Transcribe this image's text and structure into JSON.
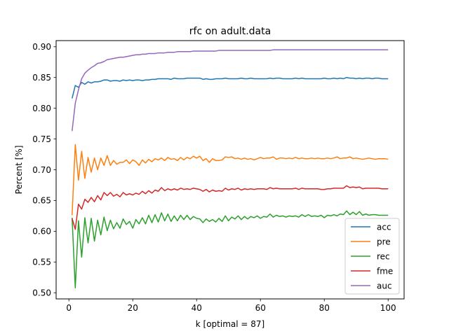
{
  "chart_data": {
    "type": "line",
    "title": "rfc on adult.data",
    "xlabel": "k [optimal = 87]",
    "ylabel": "Percent [%]",
    "xlim": [
      -4,
      105
    ],
    "ylim": [
      0.49,
      0.91
    ],
    "xticks": [
      0,
      20,
      40,
      60,
      80,
      100
    ],
    "xtick_labels": [
      "0",
      "20",
      "40",
      "60",
      "80",
      "100"
    ],
    "yticks": [
      0.5,
      0.55,
      0.6,
      0.65,
      0.7,
      0.75,
      0.8,
      0.85,
      0.9
    ],
    "ytick_labels": [
      "0.50",
      "0.55",
      "0.60",
      "0.65",
      "0.70",
      "0.75",
      "0.80",
      "0.85",
      "0.90"
    ],
    "grid": false,
    "legend_position": "lower-right",
    "x": [
      1,
      2,
      3,
      4,
      5,
      6,
      7,
      8,
      9,
      10,
      11,
      12,
      13,
      14,
      15,
      16,
      17,
      18,
      19,
      20,
      21,
      22,
      23,
      24,
      25,
      26,
      27,
      28,
      29,
      30,
      31,
      32,
      33,
      34,
      35,
      36,
      37,
      38,
      39,
      40,
      41,
      42,
      43,
      44,
      45,
      46,
      47,
      48,
      49,
      50,
      51,
      52,
      53,
      54,
      55,
      56,
      57,
      58,
      59,
      60,
      61,
      62,
      63,
      64,
      65,
      66,
      67,
      68,
      69,
      70,
      71,
      72,
      73,
      74,
      75,
      76,
      77,
      78,
      79,
      80,
      81,
      82,
      83,
      84,
      85,
      86,
      87,
      88,
      89,
      90,
      91,
      92,
      93,
      94,
      95,
      96,
      97,
      98,
      99,
      100
    ],
    "series": [
      {
        "name": "acc",
        "color": "#1f77b4",
        "values": [
          0.816,
          0.837,
          0.834,
          0.842,
          0.839,
          0.843,
          0.841,
          0.843,
          0.843,
          0.844,
          0.846,
          0.846,
          0.844,
          0.845,
          0.845,
          0.844,
          0.846,
          0.845,
          0.846,
          0.845,
          0.846,
          0.846,
          0.845,
          0.846,
          0.846,
          0.847,
          0.847,
          0.848,
          0.848,
          0.848,
          0.848,
          0.847,
          0.849,
          0.848,
          0.848,
          0.848,
          0.849,
          0.849,
          0.849,
          0.849,
          0.849,
          0.847,
          0.848,
          0.847,
          0.847,
          0.848,
          0.848,
          0.848,
          0.849,
          0.848,
          0.848,
          0.848,
          0.848,
          0.849,
          0.848,
          0.848,
          0.849,
          0.848,
          0.848,
          0.848,
          0.848,
          0.848,
          0.849,
          0.848,
          0.849,
          0.849,
          0.848,
          0.848,
          0.848,
          0.848,
          0.849,
          0.848,
          0.849,
          0.848,
          0.848,
          0.848,
          0.848,
          0.848,
          0.848,
          0.849,
          0.848,
          0.848,
          0.849,
          0.848,
          0.849,
          0.848,
          0.85,
          0.849,
          0.849,
          0.848,
          0.849,
          0.848,
          0.849,
          0.849,
          0.848,
          0.849,
          0.849,
          0.848,
          0.848,
          0.848
        ]
      },
      {
        "name": "pre",
        "color": "#ff7f0e",
        "values": [
          0.626,
          0.741,
          0.683,
          0.73,
          0.686,
          0.72,
          0.696,
          0.719,
          0.7,
          0.719,
          0.707,
          0.723,
          0.707,
          0.715,
          0.709,
          0.712,
          0.712,
          0.716,
          0.71,
          0.716,
          0.713,
          0.707,
          0.716,
          0.711,
          0.717,
          0.713,
          0.718,
          0.716,
          0.719,
          0.715,
          0.72,
          0.717,
          0.718,
          0.715,
          0.72,
          0.716,
          0.72,
          0.718,
          0.722,
          0.719,
          0.722,
          0.715,
          0.718,
          0.712,
          0.718,
          0.715,
          0.715,
          0.716,
          0.721,
          0.72,
          0.721,
          0.718,
          0.719,
          0.717,
          0.719,
          0.717,
          0.718,
          0.716,
          0.718,
          0.72,
          0.718,
          0.719,
          0.719,
          0.721,
          0.717,
          0.719,
          0.719,
          0.718,
          0.719,
          0.718,
          0.72,
          0.718,
          0.719,
          0.718,
          0.718,
          0.719,
          0.718,
          0.719,
          0.718,
          0.718,
          0.719,
          0.718,
          0.719,
          0.721,
          0.718,
          0.719,
          0.719,
          0.721,
          0.718,
          0.719,
          0.718,
          0.717,
          0.718,
          0.719,
          0.718,
          0.717,
          0.718,
          0.718,
          0.718,
          0.717
        ]
      },
      {
        "name": "rec",
        "color": "#2ca02c",
        "values": [
          0.622,
          0.508,
          0.617,
          0.558,
          0.622,
          0.581,
          0.621,
          0.584,
          0.618,
          0.594,
          0.623,
          0.601,
          0.618,
          0.604,
          0.614,
          0.605,
          0.62,
          0.611,
          0.616,
          0.605,
          0.619,
          0.612,
          0.622,
          0.612,
          0.626,
          0.614,
          0.627,
          0.615,
          0.63,
          0.617,
          0.628,
          0.616,
          0.625,
          0.617,
          0.626,
          0.619,
          0.626,
          0.619,
          0.624,
          0.621,
          0.62,
          0.614,
          0.62,
          0.616,
          0.619,
          0.615,
          0.621,
          0.616,
          0.625,
          0.617,
          0.623,
          0.62,
          0.625,
          0.619,
          0.624,
          0.62,
          0.624,
          0.622,
          0.625,
          0.621,
          0.624,
          0.623,
          0.628,
          0.623,
          0.626,
          0.624,
          0.625,
          0.623,
          0.625,
          0.624,
          0.625,
          0.623,
          0.627,
          0.624,
          0.627,
          0.624,
          0.625,
          0.624,
          0.626,
          0.622,
          0.626,
          0.625,
          0.627,
          0.625,
          0.628,
          0.627,
          0.633,
          0.627,
          0.631,
          0.627,
          0.632,
          0.626,
          0.628,
          0.626,
          0.627,
          0.627,
          0.626,
          0.626,
          0.626,
          0.626
        ]
      },
      {
        "name": "fme",
        "color": "#d62728",
        "values": [
          0.621,
          0.603,
          0.644,
          0.636,
          0.652,
          0.647,
          0.655,
          0.648,
          0.658,
          0.651,
          0.663,
          0.658,
          0.663,
          0.657,
          0.66,
          0.656,
          0.663,
          0.659,
          0.661,
          0.659,
          0.662,
          0.66,
          0.665,
          0.661,
          0.666,
          0.662,
          0.667,
          0.665,
          0.671,
          0.666,
          0.669,
          0.667,
          0.669,
          0.667,
          0.67,
          0.668,
          0.669,
          0.668,
          0.67,
          0.669,
          0.668,
          0.665,
          0.668,
          0.664,
          0.667,
          0.665,
          0.666,
          0.665,
          0.67,
          0.667,
          0.669,
          0.668,
          0.67,
          0.667,
          0.669,
          0.668,
          0.669,
          0.668,
          0.669,
          0.669,
          0.669,
          0.668,
          0.671,
          0.669,
          0.67,
          0.669,
          0.669,
          0.669,
          0.669,
          0.669,
          0.67,
          0.668,
          0.67,
          0.669,
          0.669,
          0.669,
          0.669,
          0.669,
          0.668,
          0.668,
          0.669,
          0.669,
          0.67,
          0.67,
          0.67,
          0.67,
          0.674,
          0.671,
          0.672,
          0.671,
          0.672,
          0.669,
          0.67,
          0.67,
          0.67,
          0.67,
          0.67,
          0.669,
          0.669,
          0.669
        ]
      },
      {
        "name": "auc",
        "color": "#9467bd",
        "values": [
          0.763,
          0.808,
          0.83,
          0.848,
          0.857,
          0.862,
          0.866,
          0.869,
          0.873,
          0.874,
          0.876,
          0.879,
          0.88,
          0.881,
          0.882,
          0.883,
          0.883,
          0.884,
          0.885,
          0.886,
          0.887,
          0.887,
          0.888,
          0.888,
          0.889,
          0.889,
          0.889,
          0.89,
          0.89,
          0.89,
          0.891,
          0.891,
          0.891,
          0.892,
          0.892,
          0.892,
          0.892,
          0.892,
          0.893,
          0.893,
          0.893,
          0.893,
          0.893,
          0.893,
          0.893,
          0.893,
          0.894,
          0.894,
          0.894,
          0.894,
          0.894,
          0.894,
          0.894,
          0.894,
          0.894,
          0.894,
          0.894,
          0.894,
          0.894,
          0.894,
          0.894,
          0.894,
          0.894,
          0.895,
          0.895,
          0.895,
          0.895,
          0.895,
          0.895,
          0.895,
          0.895,
          0.895,
          0.895,
          0.895,
          0.895,
          0.895,
          0.895,
          0.895,
          0.895,
          0.895,
          0.895,
          0.895,
          0.895,
          0.895,
          0.895,
          0.895,
          0.895,
          0.895,
          0.895,
          0.895,
          0.895,
          0.895,
          0.895,
          0.895,
          0.895,
          0.895,
          0.895,
          0.895,
          0.895,
          0.895
        ]
      }
    ]
  }
}
